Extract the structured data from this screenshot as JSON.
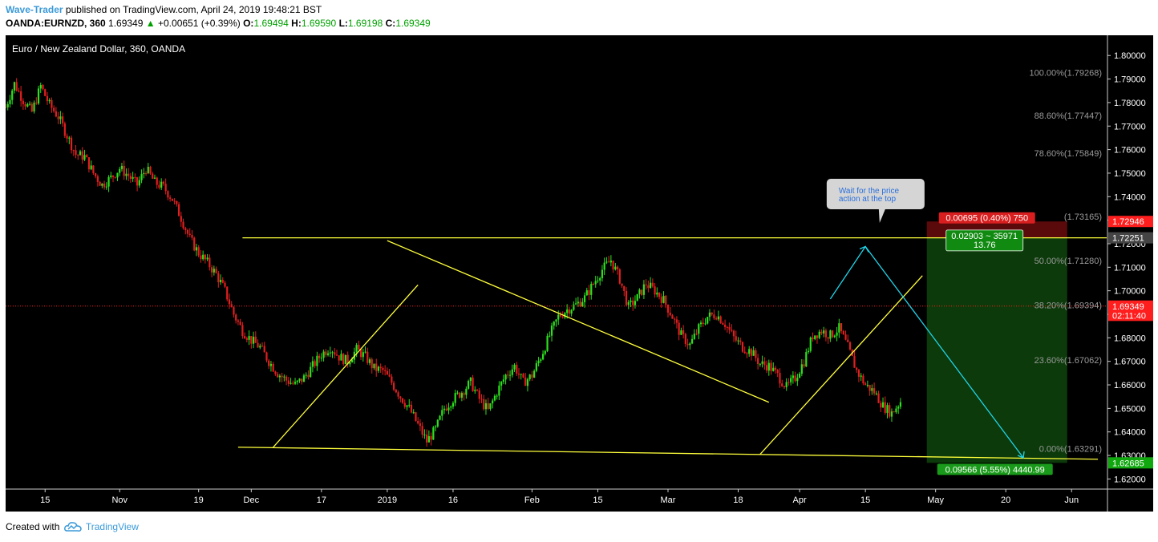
{
  "header": {
    "author": "Wave-Trader",
    "published_text": " published on TradingView.com, April 24, 2019 19:48:21 BST",
    "symbol": "OANDA:EURNZD, 360",
    "last_price": "1.69349",
    "change_arrow": "▲",
    "change": "+0.00651 (+0.39%)",
    "o_label": "O:",
    "o_value": "1.69494",
    "h_label": "H:",
    "h_value": "1.69590",
    "l_label": "L:",
    "l_value": "1.69198",
    "c_label": "C:",
    "c_value": "1.69349"
  },
  "footer": {
    "created_with": "Created with",
    "brand": "TradingView",
    "logo_icon": "tradingview-cloud-icon"
  },
  "chart_data": {
    "type": "candlestick",
    "title": "Euro / New Zealand Dollar, 360, OANDA",
    "ylim": [
      1.6157,
      1.8086
    ],
    "y_ticks": [
      "1.80000",
      "1.79000",
      "1.78000",
      "1.77000",
      "1.76000",
      "1.75000",
      "1.74000",
      "1.73000",
      "1.72000",
      "1.71000",
      "1.70000",
      "1.69000",
      "1.68000",
      "1.67000",
      "1.66000",
      "1.65000",
      "1.64000",
      "1.63000",
      "1.62000"
    ],
    "x_ticks": [
      "15",
      "Nov",
      "19",
      "Dec",
      "17",
      "2019",
      "16",
      "Feb",
      "15",
      "Mar",
      "18",
      "Apr",
      "15",
      "May",
      "20",
      "Jun"
    ],
    "x_tick_days": [
      0,
      17,
      35,
      47,
      63,
      78,
      93,
      111,
      126,
      142,
      158,
      172,
      187,
      203,
      219,
      234
    ],
    "x_range_days": [
      -9,
      242
    ],
    "last_price_days": 195,
    "price_path": [
      [
        -9,
        1.778
      ],
      [
        -7,
        1.788
      ],
      [
        -5,
        1.781
      ],
      [
        -3,
        1.776
      ],
      [
        -1,
        1.787
      ],
      [
        1,
        1.779
      ],
      [
        3,
        1.774
      ],
      [
        5,
        1.766
      ],
      [
        7,
        1.758
      ],
      [
        9,
        1.757
      ],
      [
        11,
        1.75
      ],
      [
        13,
        1.745
      ],
      [
        15,
        1.748
      ],
      [
        17,
        1.752
      ],
      [
        19,
        1.749
      ],
      [
        21,
        1.745
      ],
      [
        23,
        1.752
      ],
      [
        25,
        1.746
      ],
      [
        27,
        1.744
      ],
      [
        29,
        1.739
      ],
      [
        31,
        1.731
      ],
      [
        33,
        1.722
      ],
      [
        35,
        1.716
      ],
      [
        37,
        1.712
      ],
      [
        39,
        1.707
      ],
      [
        41,
        1.7
      ],
      [
        43,
        1.69
      ],
      [
        45,
        1.683
      ],
      [
        47,
        1.679
      ],
      [
        49,
        1.676
      ],
      [
        51,
        1.67
      ],
      [
        53,
        1.665
      ],
      [
        55,
        1.662
      ],
      [
        57,
        1.66
      ],
      [
        59,
        1.663
      ],
      [
        61,
        1.668
      ],
      [
        63,
        1.673
      ],
      [
        65,
        1.676
      ],
      [
        67,
        1.672
      ],
      [
        69,
        1.67
      ],
      [
        71,
        1.675
      ],
      [
        73,
        1.672
      ],
      [
        75,
        1.667
      ],
      [
        77,
        1.666
      ],
      [
        79,
        1.661
      ],
      [
        81,
        1.655
      ],
      [
        83,
        1.65
      ],
      [
        85,
        1.643
      ],
      [
        87,
        1.636
      ],
      [
        89,
        1.641
      ],
      [
        91,
        1.65
      ],
      [
        93,
        1.654
      ],
      [
        95,
        1.657
      ],
      [
        97,
        1.661
      ],
      [
        99,
        1.654
      ],
      [
        101,
        1.649
      ],
      [
        103,
        1.657
      ],
      [
        105,
        1.664
      ],
      [
        107,
        1.668
      ],
      [
        109,
        1.661
      ],
      [
        111,
        1.664
      ],
      [
        113,
        1.672
      ],
      [
        115,
        1.681
      ],
      [
        117,
        1.689
      ],
      [
        119,
        1.692
      ],
      [
        121,
        1.694
      ],
      [
        123,
        1.697
      ],
      [
        125,
        1.703
      ],
      [
        127,
        1.709
      ],
      [
        129,
        1.713
      ],
      [
        131,
        1.705
      ],
      [
        133,
        1.693
      ],
      [
        135,
        1.697
      ],
      [
        137,
        1.703
      ],
      [
        139,
        1.7
      ],
      [
        141,
        1.696
      ],
      [
        143,
        1.689
      ],
      [
        145,
        1.681
      ],
      [
        147,
        1.677
      ],
      [
        149,
        1.684
      ],
      [
        151,
        1.689
      ],
      [
        153,
        1.69
      ],
      [
        155,
        1.686
      ],
      [
        157,
        1.68
      ],
      [
        159,
        1.676
      ],
      [
        161,
        1.674
      ],
      [
        163,
        1.669
      ],
      [
        165,
        1.668
      ],
      [
        167,
        1.664
      ],
      [
        169,
        1.659
      ],
      [
        171,
        1.663
      ],
      [
        173,
        1.67
      ],
      [
        175,
        1.681
      ],
      [
        177,
        1.683
      ],
      [
        179,
        1.681
      ],
      [
        181,
        1.684
      ],
      [
        183,
        1.676
      ],
      [
        185,
        1.666
      ],
      [
        187,
        1.66
      ],
      [
        189,
        1.657
      ],
      [
        191,
        1.651
      ],
      [
        193,
        1.648
      ],
      [
        195,
        1.653
      ],
      [
        197,
        1.66
      ],
      [
        199,
        1.667
      ],
      [
        201,
        1.657
      ],
      [
        203,
        1.65
      ],
      [
        205,
        1.654
      ],
      [
        207,
        1.665
      ],
      [
        209,
        1.67
      ],
      [
        211,
        1.668
      ],
      [
        213,
        1.671
      ],
      [
        215,
        1.666
      ],
      [
        217,
        1.659
      ],
      [
        219,
        1.653
      ],
      [
        221,
        1.65
      ],
      [
        223,
        1.657
      ],
      [
        225,
        1.661
      ],
      [
        227,
        1.658
      ],
      [
        229,
        1.655
      ],
      [
        231,
        1.653
      ],
      [
        233,
        1.651
      ],
      [
        235,
        1.657
      ],
      [
        237,
        1.662
      ],
      [
        239,
        1.658
      ],
      [
        241,
        1.647
      ]
    ],
    "fib_levels": [
      {
        "label": "100.00%(1.79268)",
        "value": 1.79268
      },
      {
        "label": "88.60%(1.77447)",
        "value": 1.77447
      },
      {
        "label": "78.60%(1.75849)",
        "value": 1.75849
      },
      {
        "label": "(1.73165)",
        "value": 1.73165
      },
      {
        "label": "50.00%(1.71280)",
        "value": 1.7128
      },
      {
        "label": "38.20%(1.69394)",
        "value": 1.69394
      },
      {
        "label": "23.60%(1.67062)",
        "value": 1.67062
      },
      {
        "label": "0.00%(1.63291)",
        "value": 1.63291
      }
    ],
    "price_labels": [
      {
        "text": "1.72946",
        "value": 1.72946,
        "color": "#ff1e1e"
      },
      {
        "text": "1.72251",
        "value": 1.72251,
        "color": "#444444"
      },
      {
        "text": "1.69349",
        "value": 1.69349,
        "color": "#ff1e1e"
      },
      {
        "text": "02:11:40",
        "value": 1.68955,
        "color": "#ff1e1e"
      },
      {
        "text": "1.62685",
        "value": 1.62685,
        "color": "#11a80f"
      }
    ],
    "position": {
      "stop_text": "0.00695 (0.40%) 750",
      "current_text_1": "0.02903 ~ 35971",
      "current_text_2": "13.76",
      "target_text": "0.09566 (5.55%) 4440.99",
      "entry": 1.72251,
      "stop": 1.72946,
      "target": 1.62685,
      "start_day": 201,
      "end_day": 233
    },
    "annotation_text_1": "Wait for the price",
    "annotation_text_2": "action at the top",
    "colors": {
      "up": "#2de01f",
      "down": "#e01f1f",
      "trendline": "#ffff3b",
      "projection": "#21d4e9",
      "current_price_line": "#ff1e1e",
      "target_zone": "#0c3a0a",
      "stop_zone": "#5a0a0a"
    }
  }
}
